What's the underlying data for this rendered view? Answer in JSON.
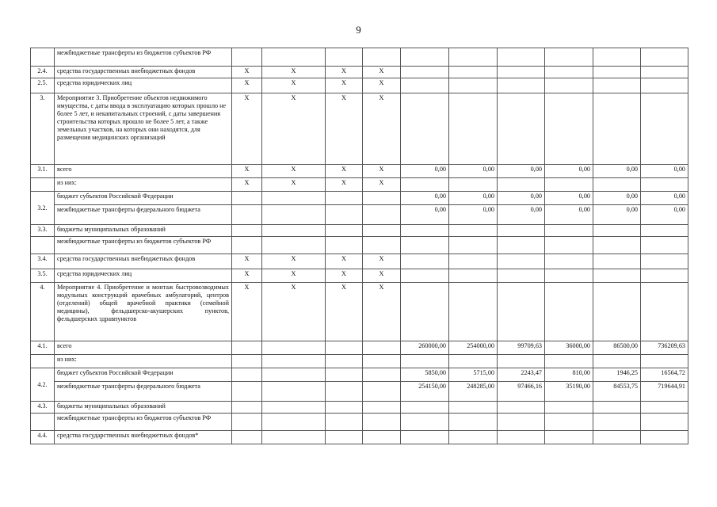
{
  "page_number": "9",
  "x_mark": "X",
  "rows": [
    {
      "num": "",
      "desc": "межбюджетные трансферты из бюджетов субъектов РФ",
      "x": false,
      "values": [
        "",
        "",
        "",
        "",
        "",
        ""
      ]
    },
    {
      "num": "2.4.",
      "desc": "средства государственных внебюджетных фондов",
      "x": true,
      "values": [
        "",
        "",
        "",
        "",
        "",
        ""
      ]
    },
    {
      "num": "2.5.",
      "desc": "средства юридических лиц",
      "x": true,
      "values": [
        "",
        "",
        "",
        "",
        "",
        ""
      ]
    },
    {
      "num": "3.",
      "desc": "Мероприятие 3. Приобретение объектов недвижимого имущества, с даты ввода в эксплуатацию которых прошло не более 5 лет, и некапитальных строений, с даты завершения строительства которых прошло не более 5 лет, а также земельных участков, на которых они находятся, для размещения медицинских организаций",
      "x": true,
      "values": [
        "",
        "",
        "",
        "",
        "",
        ""
      ]
    },
    {
      "num": "3.1.",
      "desc": "всего",
      "x": true,
      "values": [
        "0,00",
        "0,00",
        "0,00",
        "0,00",
        "0,00",
        "0,00"
      ]
    },
    {
      "num": "",
      "desc": "из них:",
      "x": true,
      "values": [
        "",
        "",
        "",
        "",
        "",
        ""
      ]
    },
    {
      "num": "3.2.",
      "rowspan": 2,
      "desc": "бюджет субъектов Российской Федерации",
      "x": false,
      "values": [
        "0,00",
        "0,00",
        "0,00",
        "0,00",
        "0,00",
        "0,00"
      ]
    },
    {
      "merged": true,
      "desc": "межбюджетные трансферты федерального бюджета",
      "x": false,
      "values": [
        "0,00",
        "0,00",
        "0,00",
        "0,00",
        "0,00",
        "0,00"
      ]
    },
    {
      "num": "3.3.",
      "desc": "бюджеты муниципальных образований",
      "x": false,
      "values": [
        "",
        "",
        "",
        "",
        "",
        ""
      ]
    },
    {
      "num": "",
      "desc": "межбюджетные трансферты из бюджетов субъектов РФ",
      "x": false,
      "values": [
        "",
        "",
        "",
        "",
        "",
        ""
      ]
    },
    {
      "num": "3.4.",
      "desc": "средства государственных внебюджетных фондов",
      "x": true,
      "values": [
        "",
        "",
        "",
        "",
        "",
        ""
      ]
    },
    {
      "num": "3.5.",
      "desc": "средства юридических лиц",
      "x": true,
      "values": [
        "",
        "",
        "",
        "",
        "",
        ""
      ]
    },
    {
      "num": "4.",
      "desc": "Мероприятие 4. Приобретение и монтаж быстровозводимых модульных конструкций врачебных амбулаторий, центров (отделений) общей врачебной практики (семейной медицины), фельдшерско-акушерских пунктов, фельдшерских здравпунктов",
      "x": true,
      "justify": true,
      "values": [
        "",
        "",
        "",
        "",
        "",
        ""
      ]
    },
    {
      "num": "4.1.",
      "desc": "всего",
      "x": false,
      "values": [
        "260000,00",
        "254000,00",
        "99709,63",
        "36000,00",
        "86500,00",
        "736209,63"
      ]
    },
    {
      "num": "",
      "desc": "из них:",
      "x": false,
      "values": [
        "",
        "",
        "",
        "",
        "",
        ""
      ]
    },
    {
      "num": "4.2.",
      "rowspan": 2,
      "desc": "бюджет субъектов Российской Федерации",
      "x": false,
      "values": [
        "5850,00",
        "5715,00",
        "2243,47",
        "810,00",
        "1946,25",
        "16564,72"
      ]
    },
    {
      "merged": true,
      "desc": "межбюджетные трансферты федерального бюджета",
      "x": false,
      "values": [
        "254150,00",
        "248285,00",
        "97466,16",
        "35190,00",
        "84553,75",
        "719644,91"
      ]
    },
    {
      "num": "4.3.",
      "desc": "бюджеты муниципальных образований",
      "x": false,
      "values": [
        "",
        "",
        "",
        "",
        "",
        ""
      ]
    },
    {
      "num": "",
      "desc": "межбюджетные трансферты из бюджетов субъектов РФ",
      "x": false,
      "values": [
        "",
        "",
        "",
        "",
        "",
        ""
      ]
    },
    {
      "num": "4.4.",
      "desc": "средства государственных внебюджетных фондов*",
      "x": false,
      "values": [
        "",
        "",
        "",
        "",
        "",
        ""
      ]
    }
  ]
}
